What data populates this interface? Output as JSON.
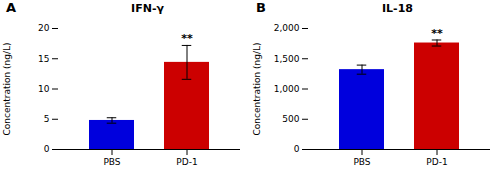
{
  "chart_data": [
    {
      "type": "bar",
      "title": "IFN-γ",
      "panel_label": "A",
      "categories": [
        "PBS",
        "PD-1"
      ],
      "values": [
        4.8,
        14.4
      ],
      "errors": [
        0.45,
        2.8
      ],
      "colors": [
        "#0000dd",
        "#cc0000"
      ],
      "ylim": [
        0,
        20
      ],
      "yticks": [
        0,
        5,
        10,
        15,
        20
      ],
      "ylabel": "Concentration (ng/L)",
      "grid": false,
      "annotations": [
        {
          "text": "**",
          "category": "PD-1"
        }
      ]
    },
    {
      "type": "bar",
      "title": "IL-18",
      "panel_label": "B",
      "categories": [
        "PBS",
        "PD-1"
      ],
      "values": [
        1320,
        1760
      ],
      "errors": [
        75,
        50
      ],
      "colors": [
        "#0000dd",
        "#cc0000"
      ],
      "ylim": [
        0,
        2000
      ],
      "yticks": [
        0,
        500,
        {
          "value": 1000,
          "label": "1,000"
        },
        {
          "value": 1500,
          "label": "1,500"
        },
        {
          "value": 2000,
          "label": "2,000"
        }
      ],
      "ylabel": "Concentration (ng/L)",
      "grid": false,
      "annotations": [
        {
          "text": "**",
          "category": "PD-1"
        }
      ]
    }
  ]
}
